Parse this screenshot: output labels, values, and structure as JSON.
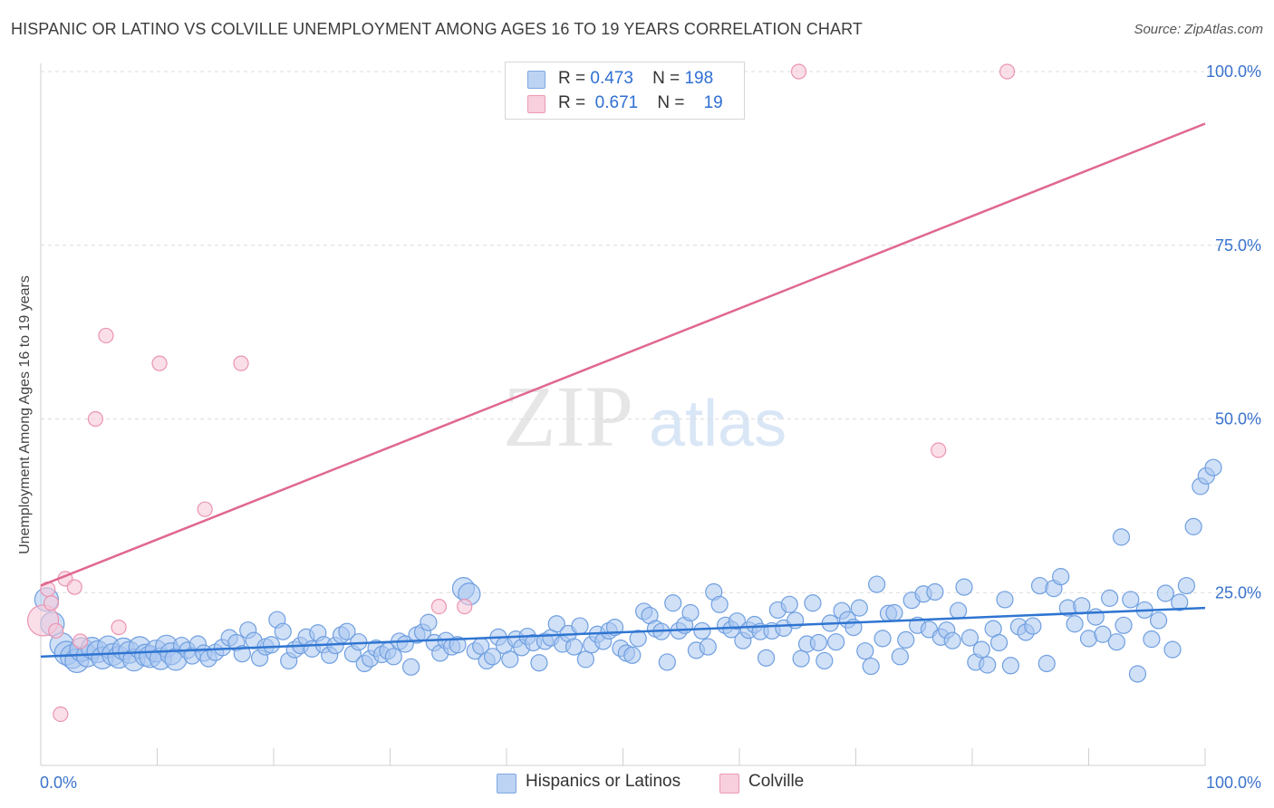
{
  "header": {
    "title": "HISPANIC OR LATINO VS COLVILLE UNEMPLOYMENT AMONG AGES 16 TO 19 YEARS CORRELATION CHART",
    "source": "Source: ZipAtlas.com"
  },
  "watermark": {
    "zip": "ZIP",
    "atlas": "atlas"
  },
  "legend": {
    "rows": [
      {
        "r_label": "R =",
        "r_value": "0.473",
        "n_label": "N =",
        "n_value": "198",
        "color": "#8fb4ea"
      },
      {
        "r_label": "R =",
        "r_value": "0.671",
        "n_label": "N =",
        "n_value": "19",
        "color": "#f2a5bf"
      }
    ]
  },
  "bottom_legend": [
    "Hispanics or Latinos",
    "Colville"
  ],
  "colors": {
    "blue_fill": "#a9c6f0",
    "blue_stroke": "#6f9fe0",
    "blue_line": "#2f75d1",
    "pink_fill": "#f7c9d8",
    "pink_stroke": "#eb94b1",
    "pink_line": "#e0688f",
    "tick_label": "#3a73cc",
    "grid": "#dcdcdc"
  },
  "chart_data": {
    "type": "scatter",
    "title": "HISPANIC OR LATINO VS COLVILLE UNEMPLOYMENT AMONG AGES 16 TO 19 YEARS CORRELATION CHART",
    "xlabel": "",
    "ylabel": "Unemployment Among Ages 16 to 19 years",
    "xlim": [
      0,
      100
    ],
    "ylim": [
      0,
      105
    ],
    "x_tick_labels": [
      "0.0%",
      "100.0%"
    ],
    "y_ticks": [
      25,
      50,
      75,
      100
    ],
    "y_tick_labels": [
      "25.0%",
      "50.0%",
      "75.0%",
      "100.0%"
    ],
    "grid": true,
    "legend_position": "top-center",
    "series": [
      {
        "name": "Hispanics or Latinos",
        "color": "#a9c6f0",
        "trend": {
          "x": [
            0,
            100
          ],
          "y": [
            15.8,
            22.8
          ]
        },
        "points": [
          [
            0.5,
            24.0
          ],
          [
            1.0,
            20.5
          ],
          [
            1.8,
            17.5
          ],
          [
            2.2,
            16.3
          ],
          [
            2.7,
            15.8
          ],
          [
            3.1,
            15.2
          ],
          [
            3.5,
            16.8
          ],
          [
            4.0,
            15.9
          ],
          [
            4.4,
            17.0
          ],
          [
            4.9,
            16.5
          ],
          [
            5.3,
            15.6
          ],
          [
            5.8,
            17.2
          ],
          [
            6.2,
            16.1
          ],
          [
            6.7,
            15.7
          ],
          [
            7.1,
            16.9
          ],
          [
            7.6,
            16.4
          ],
          [
            8.0,
            15.3
          ],
          [
            8.5,
            17.1
          ],
          [
            9.0,
            16.0
          ],
          [
            9.4,
            15.8
          ],
          [
            9.9,
            16.6
          ],
          [
            10.3,
            15.5
          ],
          [
            10.8,
            17.3
          ],
          [
            11.2,
            16.2
          ],
          [
            11.6,
            15.4
          ],
          [
            12.1,
            17.4
          ],
          [
            12.6,
            16.7
          ],
          [
            13.0,
            15.9
          ],
          [
            13.5,
            17.6
          ],
          [
            14.0,
            16.3
          ],
          [
            14.4,
            15.5
          ],
          [
            15.0,
            16.4
          ],
          [
            15.6,
            17.1
          ],
          [
            16.2,
            18.5
          ],
          [
            16.8,
            17.8
          ],
          [
            17.3,
            16.2
          ],
          [
            17.8,
            19.6
          ],
          [
            18.3,
            18.1
          ],
          [
            18.8,
            15.6
          ],
          [
            19.3,
            17.2
          ],
          [
            19.8,
            17.5
          ],
          [
            20.3,
            21.1
          ],
          [
            20.8,
            19.4
          ],
          [
            21.3,
            15.2
          ],
          [
            21.8,
            16.8
          ],
          [
            22.3,
            17.4
          ],
          [
            22.8,
            18.6
          ],
          [
            23.3,
            16.9
          ],
          [
            23.8,
            19.2
          ],
          [
            24.3,
            17.5
          ],
          [
            24.8,
            16.0
          ],
          [
            25.3,
            17.4
          ],
          [
            25.8,
            18.9
          ],
          [
            26.3,
            19.4
          ],
          [
            26.8,
            16.2
          ],
          [
            27.3,
            17.9
          ],
          [
            27.8,
            14.8
          ],
          [
            28.3,
            15.5
          ],
          [
            28.8,
            17.0
          ],
          [
            29.3,
            16.1
          ],
          [
            29.8,
            16.6
          ],
          [
            30.3,
            15.8
          ],
          [
            30.8,
            18.0
          ],
          [
            31.3,
            17.6
          ],
          [
            31.8,
            14.3
          ],
          [
            32.3,
            18.9
          ],
          [
            32.8,
            19.3
          ],
          [
            33.3,
            20.7
          ],
          [
            33.8,
            17.8
          ],
          [
            34.3,
            16.3
          ],
          [
            34.8,
            18.1
          ],
          [
            35.3,
            17.2
          ],
          [
            35.8,
            17.5
          ],
          [
            36.3,
            25.6
          ],
          [
            36.8,
            24.8
          ],
          [
            37.3,
            16.6
          ],
          [
            37.8,
            17.3
          ],
          [
            38.3,
            15.2
          ],
          [
            38.8,
            15.8
          ],
          [
            39.3,
            18.6
          ],
          [
            39.8,
            17.4
          ],
          [
            40.3,
            15.4
          ],
          [
            40.8,
            18.3
          ],
          [
            41.3,
            17.1
          ],
          [
            41.8,
            18.7
          ],
          [
            42.3,
            17.8
          ],
          [
            42.8,
            14.9
          ],
          [
            43.3,
            18.0
          ],
          [
            43.8,
            18.5
          ],
          [
            44.3,
            20.5
          ],
          [
            44.8,
            17.6
          ],
          [
            45.3,
            19.1
          ],
          [
            45.8,
            17.2
          ],
          [
            46.3,
            20.2
          ],
          [
            46.8,
            15.4
          ],
          [
            47.3,
            17.5
          ],
          [
            47.8,
            19.0
          ],
          [
            48.3,
            18.0
          ],
          [
            48.8,
            19.5
          ],
          [
            49.3,
            20.0
          ],
          [
            49.8,
            17.0
          ],
          [
            50.3,
            16.3
          ],
          [
            50.8,
            16.0
          ],
          [
            51.3,
            18.4
          ],
          [
            51.8,
            22.3
          ],
          [
            52.3,
            21.7
          ],
          [
            52.8,
            19.8
          ],
          [
            53.3,
            19.4
          ],
          [
            53.8,
            15.0
          ],
          [
            54.3,
            23.5
          ],
          [
            54.8,
            19.5
          ],
          [
            55.3,
            20.3
          ],
          [
            55.8,
            22.1
          ],
          [
            56.3,
            16.7
          ],
          [
            56.8,
            19.5
          ],
          [
            57.3,
            17.2
          ],
          [
            57.8,
            25.1
          ],
          [
            58.3,
            23.3
          ],
          [
            58.8,
            20.3
          ],
          [
            59.3,
            19.7
          ],
          [
            59.8,
            20.9
          ],
          [
            60.3,
            18.1
          ],
          [
            60.8,
            19.6
          ],
          [
            61.3,
            20.4
          ],
          [
            61.8,
            19.4
          ],
          [
            62.3,
            15.6
          ],
          [
            62.8,
            19.5
          ],
          [
            63.3,
            22.5
          ],
          [
            63.8,
            19.9
          ],
          [
            64.3,
            23.3
          ],
          [
            64.8,
            21.0
          ],
          [
            65.3,
            15.5
          ],
          [
            65.8,
            17.6
          ],
          [
            66.3,
            23.5
          ],
          [
            66.8,
            17.8
          ],
          [
            67.3,
            15.2
          ],
          [
            67.8,
            20.6
          ],
          [
            68.3,
            17.9
          ],
          [
            68.8,
            22.4
          ],
          [
            69.3,
            21.1
          ],
          [
            69.8,
            20.0
          ],
          [
            70.3,
            22.8
          ],
          [
            70.8,
            16.6
          ],
          [
            71.3,
            14.4
          ],
          [
            71.8,
            26.2
          ],
          [
            72.3,
            18.4
          ],
          [
            72.8,
            22.0
          ],
          [
            73.3,
            22.1
          ],
          [
            73.8,
            15.8
          ],
          [
            74.3,
            18.2
          ],
          [
            74.8,
            23.9
          ],
          [
            75.3,
            20.3
          ],
          [
            75.8,
            24.8
          ],
          [
            76.3,
            19.7
          ],
          [
            76.8,
            25.1
          ],
          [
            77.3,
            18.6
          ],
          [
            77.8,
            19.6
          ],
          [
            78.3,
            18.1
          ],
          [
            78.8,
            22.4
          ],
          [
            79.3,
            25.8
          ],
          [
            79.8,
            18.5
          ],
          [
            80.3,
            15.0
          ],
          [
            80.8,
            16.8
          ],
          [
            81.3,
            14.6
          ],
          [
            81.8,
            19.8
          ],
          [
            82.3,
            17.8
          ],
          [
            82.8,
            24.0
          ],
          [
            83.3,
            14.5
          ],
          [
            84.0,
            20.1
          ],
          [
            84.6,
            19.3
          ],
          [
            85.2,
            20.2
          ],
          [
            85.8,
            26.0
          ],
          [
            86.4,
            14.8
          ],
          [
            87.0,
            25.6
          ],
          [
            87.6,
            27.3
          ],
          [
            88.2,
            22.8
          ],
          [
            88.8,
            20.5
          ],
          [
            89.4,
            23.1
          ],
          [
            90.0,
            18.4
          ],
          [
            90.6,
            21.5
          ],
          [
            91.2,
            19.0
          ],
          [
            91.8,
            24.2
          ],
          [
            92.4,
            17.9
          ],
          [
            93.0,
            20.3
          ],
          [
            93.6,
            24.0
          ],
          [
            94.2,
            13.3
          ],
          [
            94.8,
            22.5
          ],
          [
            95.4,
            18.3
          ],
          [
            96.0,
            21.0
          ],
          [
            96.6,
            24.9
          ],
          [
            97.2,
            16.8
          ],
          [
            97.8,
            23.6
          ],
          [
            98.4,
            26.0
          ],
          [
            99.0,
            34.5
          ],
          [
            99.6,
            40.3
          ],
          [
            100.1,
            41.8
          ],
          [
            100.7,
            43.0
          ],
          [
            92.8,
            33.0
          ]
        ]
      },
      {
        "name": "Colville",
        "color": "#f7c9d8",
        "trend": {
          "x": [
            0,
            100
          ],
          "y": [
            26.0,
            92.5
          ]
        },
        "points": [
          [
            0.2,
            21.0
          ],
          [
            0.6,
            25.5
          ],
          [
            0.9,
            23.5
          ],
          [
            1.3,
            19.5
          ],
          [
            1.7,
            7.5
          ],
          [
            2.1,
            27.0
          ],
          [
            2.9,
            25.8
          ],
          [
            3.4,
            18.0
          ],
          [
            4.7,
            50.0
          ],
          [
            5.6,
            62.0
          ],
          [
            6.7,
            20.0
          ],
          [
            10.2,
            58.0
          ],
          [
            14.1,
            37.0
          ],
          [
            17.2,
            58.0
          ],
          [
            34.2,
            23.0
          ],
          [
            36.4,
            23.0
          ],
          [
            65.1,
            100.0
          ],
          [
            77.1,
            45.5
          ],
          [
            83.0,
            100.0
          ]
        ]
      }
    ]
  }
}
